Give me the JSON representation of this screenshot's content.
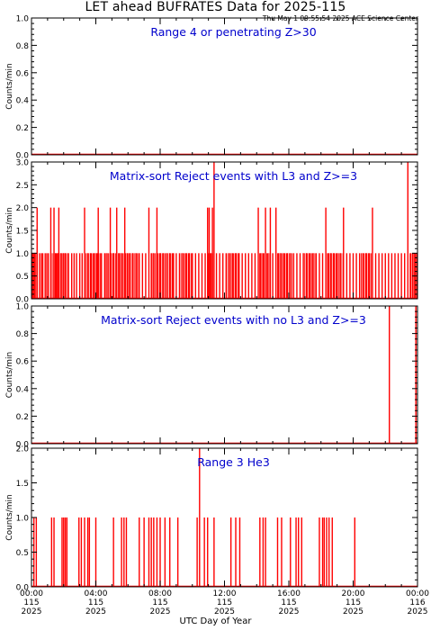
{
  "header": {
    "title": "LET ahead BUFRATES Data for 2025-115",
    "timestamp": "Thu May  1 09:55:54 2025 ACE Science Center"
  },
  "colors": {
    "data": "#ff0000",
    "annotation": "#0000cc",
    "axes": "#000000"
  },
  "chart_data": [
    {
      "type": "line",
      "title": "Range 4 or   penetrating Z>30",
      "ylabel": "Counts/min",
      "ylim": [
        0,
        1.0
      ],
      "yticks": [
        "0.0",
        "0.2",
        "0.4",
        "0.6",
        "0.8",
        "1.0"
      ],
      "xlim": [
        0,
        24
      ],
      "series": [
        {
          "baseline": 0,
          "spikes": []
        }
      ]
    },
    {
      "type": "line",
      "title": "Matrix-sort Reject events with L3 and Z>=3",
      "ylabel": "Counts/min",
      "ylim": [
        0,
        3.0
      ],
      "yticks": [
        "0.0",
        "0.5",
        "1.0",
        "1.5",
        "2.0",
        "2.5",
        "3.0"
      ],
      "xlim": [
        0,
        24
      ],
      "series": [
        {
          "baseline": 0,
          "dense_spans": [
            [
              0.0,
              0.4
            ],
            [
              1.2,
              2.3
            ],
            [
              3.3,
              4.3
            ],
            [
              4.6,
              6.7
            ],
            [
              7.5,
              8.9
            ],
            [
              9.3,
              10.1
            ],
            [
              11.0,
              11.3
            ],
            [
              12.2,
              13.0
            ],
            [
              14.1,
              14.9
            ],
            [
              15.3,
              16.2
            ],
            [
              16.9,
              17.7
            ],
            [
              18.4,
              19.4
            ],
            [
              20.5,
              21.2
            ],
            [
              23.6,
              24.0
            ]
          ],
          "spikes": [
            [
              0.05,
              1
            ],
            [
              0.12,
              1
            ],
            [
              0.2,
              1
            ],
            [
              0.35,
              2
            ],
            [
              0.5,
              1
            ],
            [
              0.62,
              1
            ],
            [
              0.7,
              1
            ],
            [
              0.85,
              1
            ],
            [
              0.95,
              1
            ],
            [
              1.05,
              1
            ],
            [
              1.2,
              2
            ],
            [
              1.4,
              2
            ],
            [
              1.5,
              1
            ],
            [
              1.62,
              1
            ],
            [
              1.7,
              2
            ],
            [
              1.85,
              1
            ],
            [
              2.0,
              1
            ],
            [
              2.1,
              1
            ],
            [
              2.3,
              1
            ],
            [
              2.5,
              1
            ],
            [
              2.65,
              1
            ],
            [
              2.8,
              1
            ],
            [
              3.0,
              1
            ],
            [
              3.15,
              1
            ],
            [
              3.3,
              2
            ],
            [
              3.5,
              1
            ],
            [
              3.7,
              1
            ],
            [
              3.9,
              1
            ],
            [
              4.05,
              1
            ],
            [
              4.15,
              2
            ],
            [
              4.35,
              1
            ],
            [
              4.55,
              1
            ],
            [
              4.7,
              1
            ],
            [
              4.9,
              2
            ],
            [
              5.1,
              1
            ],
            [
              5.3,
              2
            ],
            [
              5.45,
              1
            ],
            [
              5.6,
              1
            ],
            [
              5.8,
              2
            ],
            [
              5.95,
              1
            ],
            [
              6.1,
              1
            ],
            [
              6.3,
              1
            ],
            [
              6.5,
              1
            ],
            [
              6.7,
              1
            ],
            [
              6.9,
              1
            ],
            [
              7.1,
              1
            ],
            [
              7.3,
              2
            ],
            [
              7.45,
              1
            ],
            [
              7.6,
              1
            ],
            [
              7.8,
              2
            ],
            [
              8.0,
              1
            ],
            [
              8.2,
              1
            ],
            [
              8.4,
              1
            ],
            [
              8.6,
              1
            ],
            [
              8.8,
              1
            ],
            [
              9.0,
              1
            ],
            [
              9.2,
              1
            ],
            [
              9.4,
              1
            ],
            [
              9.6,
              1
            ],
            [
              9.8,
              1
            ],
            [
              10.0,
              1
            ],
            [
              10.2,
              1
            ],
            [
              10.4,
              1
            ],
            [
              10.6,
              1
            ],
            [
              10.8,
              1
            ],
            [
              10.95,
              2
            ],
            [
              11.05,
              2
            ],
            [
              11.15,
              1
            ],
            [
              11.25,
              2
            ],
            [
              11.35,
              3
            ],
            [
              11.5,
              1
            ],
            [
              11.7,
              1
            ],
            [
              11.9,
              1
            ],
            [
              12.1,
              1
            ],
            [
              12.3,
              1
            ],
            [
              12.5,
              1
            ],
            [
              12.7,
              1
            ],
            [
              12.9,
              1
            ],
            [
              13.1,
              1
            ],
            [
              13.3,
              1
            ],
            [
              13.5,
              1
            ],
            [
              13.7,
              1
            ],
            [
              13.9,
              1
            ],
            [
              14.1,
              2
            ],
            [
              14.25,
              1
            ],
            [
              14.4,
              1
            ],
            [
              14.55,
              2
            ],
            [
              14.7,
              1
            ],
            [
              14.85,
              2
            ],
            [
              15.0,
              1
            ],
            [
              15.2,
              2
            ],
            [
              15.35,
              1
            ],
            [
              15.5,
              1
            ],
            [
              15.7,
              1
            ],
            [
              15.9,
              1
            ],
            [
              16.1,
              1
            ],
            [
              16.3,
              1
            ],
            [
              16.5,
              1
            ],
            [
              16.7,
              1
            ],
            [
              16.9,
              1
            ],
            [
              17.1,
              1
            ],
            [
              17.3,
              1
            ],
            [
              17.5,
              1
            ],
            [
              17.7,
              1
            ],
            [
              17.9,
              1
            ],
            [
              18.1,
              1
            ],
            [
              18.3,
              2
            ],
            [
              18.45,
              1
            ],
            [
              18.6,
              1
            ],
            [
              18.8,
              1
            ],
            [
              19.0,
              1
            ],
            [
              19.2,
              1
            ],
            [
              19.4,
              2
            ],
            [
              19.6,
              1
            ],
            [
              19.8,
              1
            ],
            [
              20.0,
              1
            ],
            [
              20.2,
              1
            ],
            [
              20.4,
              1
            ],
            [
              20.6,
              1
            ],
            [
              20.8,
              1
            ],
            [
              21.0,
              1
            ],
            [
              21.2,
              2
            ],
            [
              21.4,
              1
            ],
            [
              21.6,
              1
            ],
            [
              21.8,
              1
            ],
            [
              22.0,
              1
            ],
            [
              22.2,
              1
            ],
            [
              22.4,
              1
            ],
            [
              22.6,
              1
            ],
            [
              22.8,
              1
            ],
            [
              23.0,
              1
            ],
            [
              23.2,
              1
            ],
            [
              23.4,
              3
            ],
            [
              23.55,
              1
            ],
            [
              23.7,
              1
            ],
            [
              23.85,
              1
            ],
            [
              23.95,
              1
            ]
          ]
        }
      ]
    },
    {
      "type": "line",
      "title": "Matrix-sort Reject events with no L3 and Z>=3",
      "ylabel": "Counts/min",
      "ylim": [
        0,
        1.0
      ],
      "yticks": [
        "0.0",
        "0.2",
        "0.4",
        "0.6",
        "0.8",
        "1.0"
      ],
      "xlim": [
        0,
        24
      ],
      "series": [
        {
          "baseline": 0,
          "spikes": [
            [
              22.25,
              1
            ],
            [
              23.9,
              1
            ]
          ]
        }
      ]
    },
    {
      "type": "line",
      "title": "Range 3 He3",
      "ylabel": "Counts/min",
      "ylim": [
        0,
        2.0
      ],
      "yticks": [
        "0.0",
        "0.5",
        "1.0",
        "1.5",
        "2.0"
      ],
      "xlim": [
        0,
        24
      ],
      "series": [
        {
          "baseline": 0,
          "spikes": [
            [
              0.15,
              1
            ],
            [
              0.3,
              1
            ],
            [
              1.25,
              1
            ],
            [
              1.4,
              1
            ],
            [
              1.9,
              1
            ],
            [
              2.0,
              1
            ],
            [
              2.1,
              1
            ],
            [
              2.2,
              1
            ],
            [
              2.95,
              1
            ],
            [
              3.1,
              1
            ],
            [
              3.3,
              1
            ],
            [
              3.5,
              1
            ],
            [
              3.6,
              1
            ],
            [
              4.0,
              1
            ],
            [
              5.1,
              1
            ],
            [
              5.6,
              1
            ],
            [
              5.75,
              1
            ],
            [
              5.9,
              1
            ],
            [
              6.7,
              1
            ],
            [
              7.0,
              1
            ],
            [
              7.3,
              1
            ],
            [
              7.45,
              1
            ],
            [
              7.6,
              1
            ],
            [
              7.8,
              1
            ],
            [
              8.0,
              1
            ],
            [
              8.3,
              1
            ],
            [
              8.6,
              1
            ],
            [
              9.1,
              1
            ],
            [
              10.3,
              1
            ],
            [
              10.45,
              2
            ],
            [
              10.75,
              1
            ],
            [
              10.95,
              1
            ],
            [
              11.35,
              1
            ],
            [
              12.4,
              1
            ],
            [
              12.7,
              1
            ],
            [
              12.95,
              1
            ],
            [
              14.2,
              1
            ],
            [
              14.4,
              1
            ],
            [
              14.55,
              1
            ],
            [
              15.3,
              1
            ],
            [
              15.55,
              1
            ],
            [
              16.1,
              1
            ],
            [
              16.45,
              1
            ],
            [
              16.6,
              1
            ],
            [
              16.8,
              1
            ],
            [
              17.9,
              1
            ],
            [
              18.1,
              1
            ],
            [
              18.2,
              1
            ],
            [
              18.35,
              1
            ],
            [
              18.5,
              1
            ],
            [
              18.7,
              1
            ],
            [
              20.1,
              1
            ]
          ]
        }
      ]
    }
  ],
  "xaxis": {
    "label": "UTC Day of Year",
    "ticks": [
      {
        "x": 0,
        "l1": "00:00",
        "l2": "115",
        "l3": "2025"
      },
      {
        "x": 4,
        "l1": "04:00",
        "l2": "115",
        "l3": "2025"
      },
      {
        "x": 8,
        "l1": "08:00",
        "l2": "115",
        "l3": "2025"
      },
      {
        "x": 12,
        "l1": "12:00",
        "l2": "115",
        "l3": "2025"
      },
      {
        "x": 16,
        "l1": "16:00",
        "l2": "115",
        "l3": "2025"
      },
      {
        "x": 20,
        "l1": "20:00",
        "l2": "115",
        "l3": "2025"
      },
      {
        "x": 24,
        "l1": "00:00",
        "l2": "116",
        "l3": "2025"
      }
    ]
  }
}
